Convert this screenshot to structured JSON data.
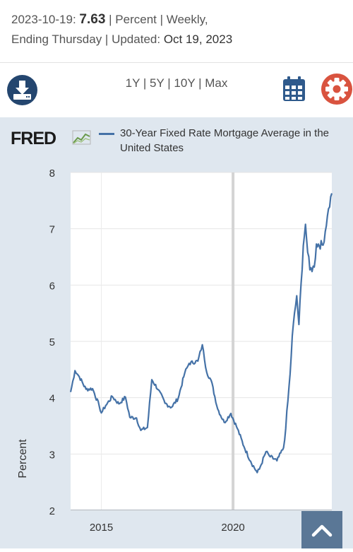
{
  "summary": {
    "date": "2023-10-19:",
    "value": "7.63",
    "units_freq": "| Percent | Weekly,",
    "ending": "Ending Thursday | Updated:",
    "updated": "Oct 19, 2023"
  },
  "toolbar": {
    "ranges": [
      "1Y",
      "5Y",
      "10Y",
      "Max"
    ],
    "separator": "|",
    "download_icon": "download-icon",
    "calendar_icon": "calendar-icon",
    "settings_icon": "gear-icon"
  },
  "colors": {
    "series": "#4572a7",
    "download": "#24466f",
    "settings": "#d9533f",
    "plot_bg": "#ffffff",
    "chart_bg": "#dfe7ef"
  },
  "logo": {
    "text": "FRED"
  },
  "chart_data": {
    "type": "line",
    "title": "",
    "xlabel": "",
    "ylabel": "Percent",
    "ylim": [
      2,
      8
    ],
    "yticks": [
      "2",
      "3",
      "4",
      "5",
      "6",
      "7",
      "8"
    ],
    "xticks": [
      "2015",
      "2020"
    ],
    "xlim": [
      "2013-11",
      "2023-10"
    ],
    "grid": true,
    "legend_position": "top",
    "series": [
      {
        "name": "30-Year Fixed Rate Mortgage Average in the United States",
        "x": [
          "2013-11",
          "2014-01",
          "2014-03",
          "2014-06",
          "2014-09",
          "2014-12",
          "2015-01",
          "2015-03",
          "2015-06",
          "2015-09",
          "2015-12",
          "2016-02",
          "2016-05",
          "2016-07",
          "2016-10",
          "2016-12",
          "2017-03",
          "2017-06",
          "2017-09",
          "2017-12",
          "2018-03",
          "2018-05",
          "2018-09",
          "2018-11",
          "2019-01",
          "2019-03",
          "2019-06",
          "2019-09",
          "2019-12",
          "2020-03",
          "2020-06",
          "2020-09",
          "2020-12",
          "2021-01",
          "2021-04",
          "2021-06",
          "2021-09",
          "2021-12",
          "2022-01",
          "2022-03",
          "2022-04",
          "2022-06",
          "2022-07",
          "2022-09",
          "2022-10",
          "2022-11",
          "2022-12",
          "2023-02",
          "2023-03",
          "2023-06",
          "2023-08",
          "2023-10"
        ],
        "y": [
          4.1,
          4.48,
          4.37,
          4.15,
          4.16,
          3.86,
          3.73,
          3.86,
          4.02,
          3.89,
          4.01,
          3.65,
          3.64,
          3.42,
          3.47,
          4.32,
          4.14,
          3.9,
          3.83,
          3.99,
          4.44,
          4.61,
          4.65,
          4.94,
          4.45,
          4.31,
          3.8,
          3.56,
          3.72,
          3.45,
          3.13,
          2.87,
          2.67,
          2.73,
          3.04,
          2.95,
          2.88,
          3.11,
          3.45,
          4.42,
          5.1,
          5.81,
          5.3,
          6.7,
          7.08,
          6.58,
          6.27,
          6.32,
          6.73,
          6.71,
          7.23,
          7.63
        ]
      }
    ]
  }
}
